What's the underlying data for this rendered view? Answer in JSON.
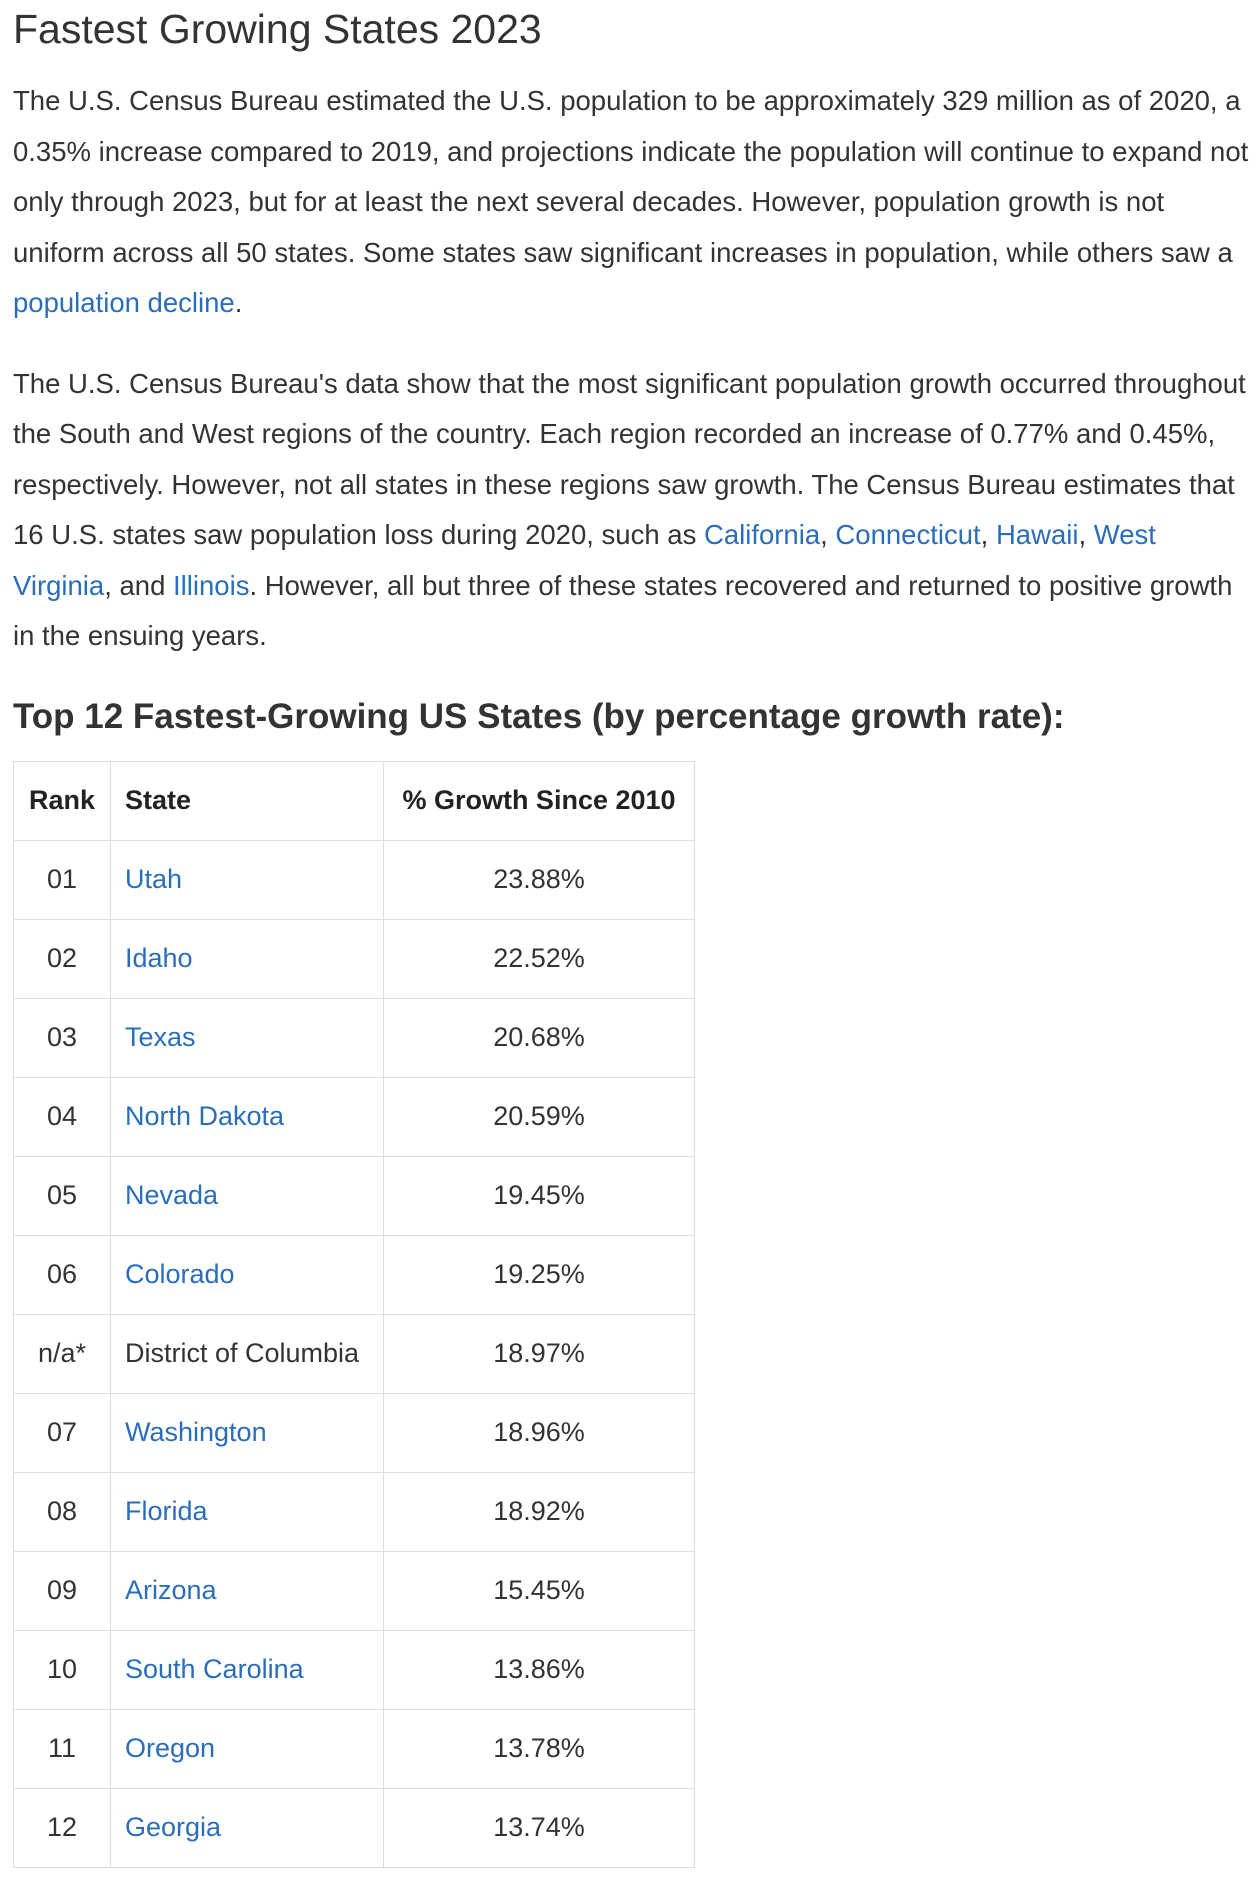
{
  "title": "Fastest Growing States 2023",
  "paragraph1": {
    "text_1": "The U.S. Census Bureau estimated the U.S. population to be approximately 329 million as of 2020, a 0.35% increase compared to 2019, and projections indicate the population will continue to expand not only through 2023, but for at least the next several decades. However, population growth is not uniform across all 50 states. Some states saw significant increases in population, while others saw a ",
    "link_population_decline": "population decline",
    "text_2": "."
  },
  "paragraph2": {
    "text_1": "The U.S. Census Bureau's data show that the most significant population growth occurred throughout the South and West regions of the country. Each region recorded an increase of 0.77% and 0.45%, respectively. However, not all states in these regions saw growth. The Census Bureau estimates that 16 U.S. states saw population loss during 2020, such as ",
    "link_california": "California",
    "sep_1": ", ",
    "link_connecticut": "Connecticut",
    "sep_2": ", ",
    "link_hawaii": "Hawaii",
    "sep_3": ", ",
    "link_west_virginia": "West Virginia",
    "sep_4": ", and ",
    "link_illinois": "Illinois",
    "text_2": ". However, all but three of these states recovered and returned to positive growth in the ensuing years."
  },
  "section_heading": "Top 12 Fastest-Growing US States (by percentage growth rate):",
  "table": {
    "headers": {
      "rank": "Rank",
      "state": "State",
      "growth": "% Growth Since 2010"
    },
    "rows": [
      {
        "rank": "01",
        "state": "Utah",
        "growth": "23.88%",
        "is_link": true
      },
      {
        "rank": "02",
        "state": "Idaho",
        "growth": "22.52%",
        "is_link": true
      },
      {
        "rank": "03",
        "state": "Texas",
        "growth": "20.68%",
        "is_link": true
      },
      {
        "rank": "04",
        "state": "North Dakota",
        "growth": "20.59%",
        "is_link": true
      },
      {
        "rank": "05",
        "state": "Nevada",
        "growth": "19.45%",
        "is_link": true
      },
      {
        "rank": "06",
        "state": "Colorado",
        "growth": "19.25%",
        "is_link": true
      },
      {
        "rank": "n/a*",
        "state": "District of Columbia",
        "growth": "18.97%",
        "is_link": false
      },
      {
        "rank": "07",
        "state": "Washington",
        "growth": "18.96%",
        "is_link": true
      },
      {
        "rank": "08",
        "state": "Florida",
        "growth": "18.92%",
        "is_link": true
      },
      {
        "rank": "09",
        "state": "Arizona",
        "growth": "15.45%",
        "is_link": true
      },
      {
        "rank": "10",
        "state": "South Carolina",
        "growth": "13.86%",
        "is_link": true
      },
      {
        "rank": "11",
        "state": "Oregon",
        "growth": "13.78%",
        "is_link": true
      },
      {
        "rank": "12",
        "state": "Georgia",
        "growth": "13.74%",
        "is_link": true
      }
    ]
  },
  "colors": {
    "text": "#333333",
    "link": "#2a6ebb",
    "table_border": "#dddddd"
  }
}
